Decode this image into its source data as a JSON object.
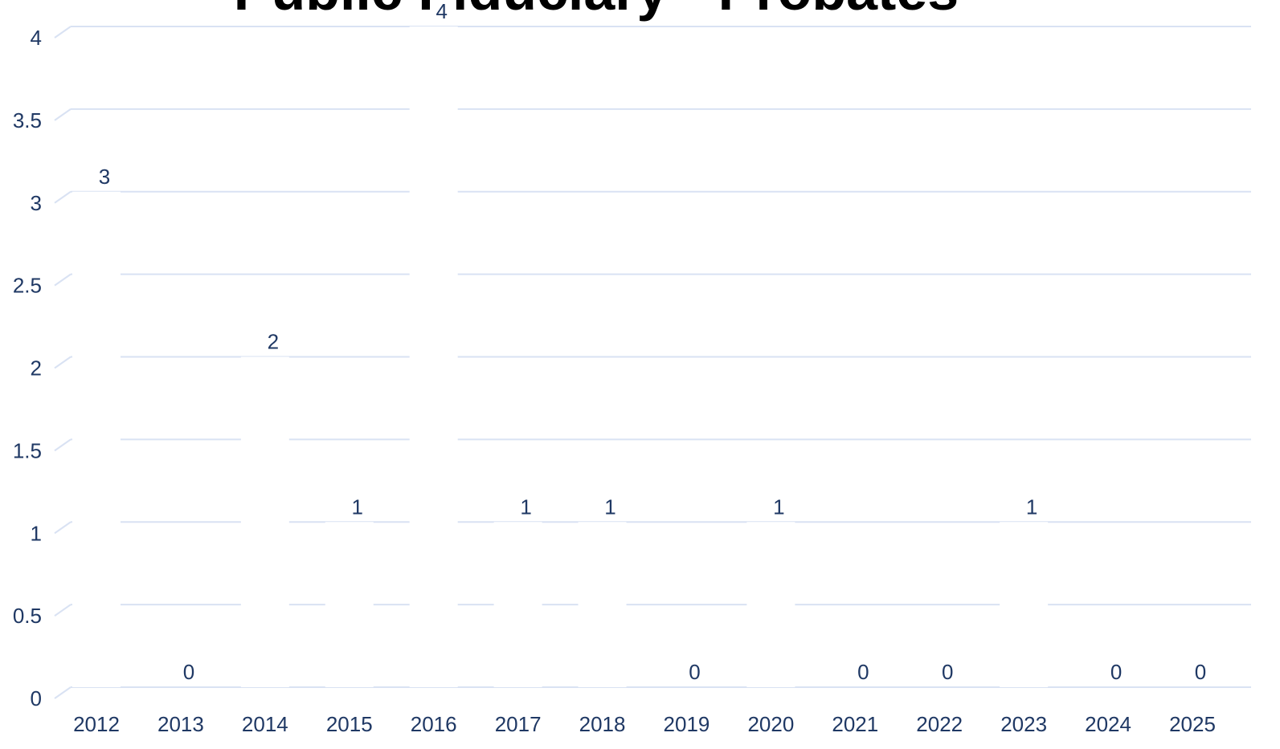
{
  "chart_data": {
    "type": "bar",
    "title": "Public Fiduciary - Probates",
    "categories": [
      "2012",
      "2013",
      "2014",
      "2015",
      "2016",
      "2017",
      "2018",
      "2019",
      "2020",
      "2021",
      "2022",
      "2023",
      "2024",
      "2025"
    ],
    "values": [
      3,
      0,
      2,
      1,
      4,
      1,
      1,
      0,
      1,
      0,
      0,
      1,
      0,
      0
    ],
    "color": "#ffffff",
    "ylim": [
      0,
      4
    ],
    "yticks": [
      0,
      0.5,
      1,
      1.5,
      2,
      2.5,
      3,
      3.5,
      4
    ],
    "grid": true
  }
}
